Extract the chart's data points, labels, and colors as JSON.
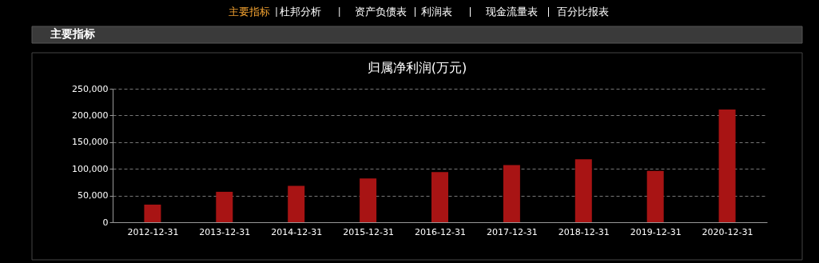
{
  "chart_data": {
    "type": "bar",
    "title": "归属净利润(万元)",
    "categories": [
      "2012-12-31",
      "2013-12-31",
      "2014-12-31",
      "2015-12-31",
      "2016-12-31",
      "2017-12-31",
      "2018-12-31",
      "2019-12-31",
      "2020-12-31"
    ],
    "values": [
      33000,
      57000,
      68000,
      82000,
      94000,
      107000,
      118000,
      96000,
      211000
    ],
    "color": "#a81414",
    "ylim": [
      0,
      250000
    ],
    "yticks": [
      0,
      {
        "value": 50000,
        "label": "50,000"
      },
      {
        "value": 100000,
        "label": "100,000"
      },
      {
        "value": 150000,
        "label": "150,000"
      },
      {
        "value": 200000,
        "label": "200,000"
      },
      {
        "value": 250000,
        "label": "250,000"
      }
    ],
    "grid": "y",
    "annotations": [
      "主要指标",
      "杜邦分析",
      "资产负债表",
      "利润表",
      "现金流量表",
      "百分比报表",
      "主要指标"
    ]
  }
}
